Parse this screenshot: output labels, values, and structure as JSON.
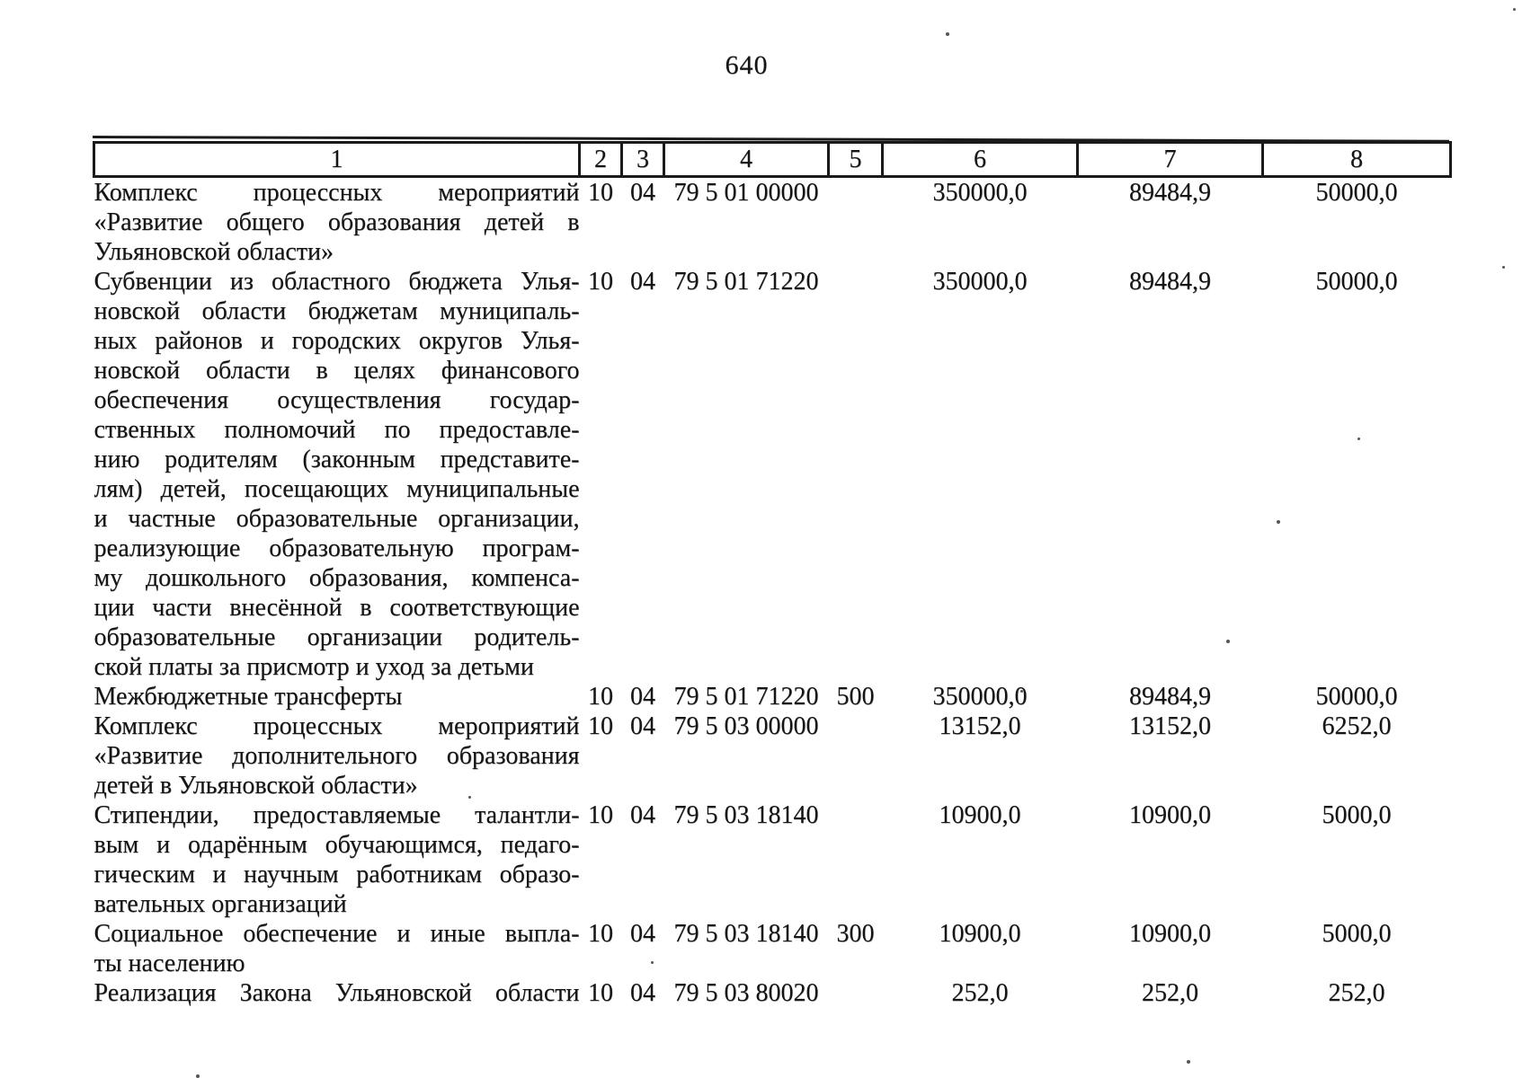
{
  "page_number": "640",
  "table": {
    "header_labels": [
      "1",
      "2",
      "3",
      "4",
      "5",
      "6",
      "7",
      "8"
    ],
    "rows": [
      {
        "lines": [
          "Комплекс процессных мероприятий",
          "«Развитие общего образования детей в",
          "Ульяновской области»"
        ],
        "c2": "10",
        "c3": "04",
        "c4": "79 5 01 00000",
        "c5": "",
        "c6": "350000,0",
        "c7": "89484,9",
        "c8": "50000,0"
      },
      {
        "lines": [
          "Субвенции из областного бюджета Улья-",
          "новской области бюджетам муниципаль-",
          "ных районов и городских округов Улья-",
          "новской области в целях финансового",
          "обеспечения осуществления государ-",
          "ственных полномочий по предоставле-",
          "нию родителям (законным представите-",
          "лям) детей, посещающих муниципальные",
          "и частные образовательные организации,",
          "реализующие образовательную програм-",
          "му дошкольного образования, компенса-",
          "ции части внесённой в соответствующие",
          "образовательные организации родитель-",
          "ской платы за присмотр и уход за детьми"
        ],
        "c2": "10",
        "c3": "04",
        "c4": "79 5 01 71220",
        "c5": "",
        "c6": "350000,0",
        "c7": "89484,9",
        "c8": "50000,0"
      },
      {
        "lines": [
          "Межбюджетные трансферты"
        ],
        "c2": "10",
        "c3": "04",
        "c4": "79 5 01 71220",
        "c5": "500",
        "c6": "350000,0",
        "c7": "89484,9",
        "c8": "50000,0"
      },
      {
        "lines": [
          "Комплекс процессных мероприятий",
          "«Развитие дополнительного образования",
          "детей в Ульяновской области»"
        ],
        "c2": "10",
        "c3": "04",
        "c4": "79 5 03 00000",
        "c5": "",
        "c6": "13152,0",
        "c7": "13152,0",
        "c8": "6252,0"
      },
      {
        "lines": [
          "Стипендии, предоставляемые талантли-",
          "вым и одарённым обучающимся, педаго-",
          "гическим и научным работникам образо-",
          "вательных организаций"
        ],
        "c2": "10",
        "c3": "04",
        "c4": "79 5 03 18140",
        "c5": "",
        "c6": "10900,0",
        "c7": "10900,0",
        "c8": "5000,0"
      },
      {
        "lines": [
          "Социальное обеспечение и иные выпла-",
          "ты населению"
        ],
        "c2": "10",
        "c3": "04",
        "c4": "79 5 03 18140",
        "c5": "300",
        "c6": "10900,0",
        "c7": "10900,0",
        "c8": "5000,0"
      },
      {
        "lines": [
          "Реализация Закона Ульяновской области"
        ],
        "justify_all": true,
        "c2": "10",
        "c3": "04",
        "c4": "79 5 03 80020",
        "c5": "",
        "c6": "252,0",
        "c7": "252,0",
        "c8": "252,0"
      }
    ]
  }
}
